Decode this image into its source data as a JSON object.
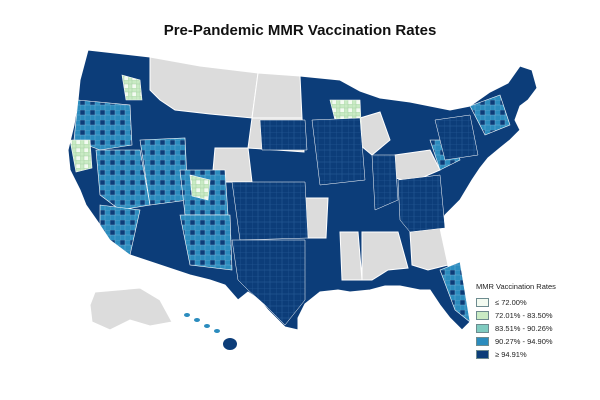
{
  "title": "Pre-Pandemic MMR Vaccination Rates",
  "legend": {
    "title": "MMR Vaccination Rates",
    "items": [
      {
        "label": "≤ 72.00%",
        "color": "#f3fbf1"
      },
      {
        "label": "72.01% - 83.50%",
        "color": "#c9ebc4"
      },
      {
        "label": "83.51% - 90.26%",
        "color": "#7fcbc0"
      },
      {
        "label": "90.27% - 94.90%",
        "color": "#2b8cbe"
      },
      {
        "label": "≥ 94.91%",
        "color": "#0c3d79"
      }
    ]
  },
  "colors": {
    "no_data": "#dcdcdc",
    "border": "#ffffff"
  }
}
